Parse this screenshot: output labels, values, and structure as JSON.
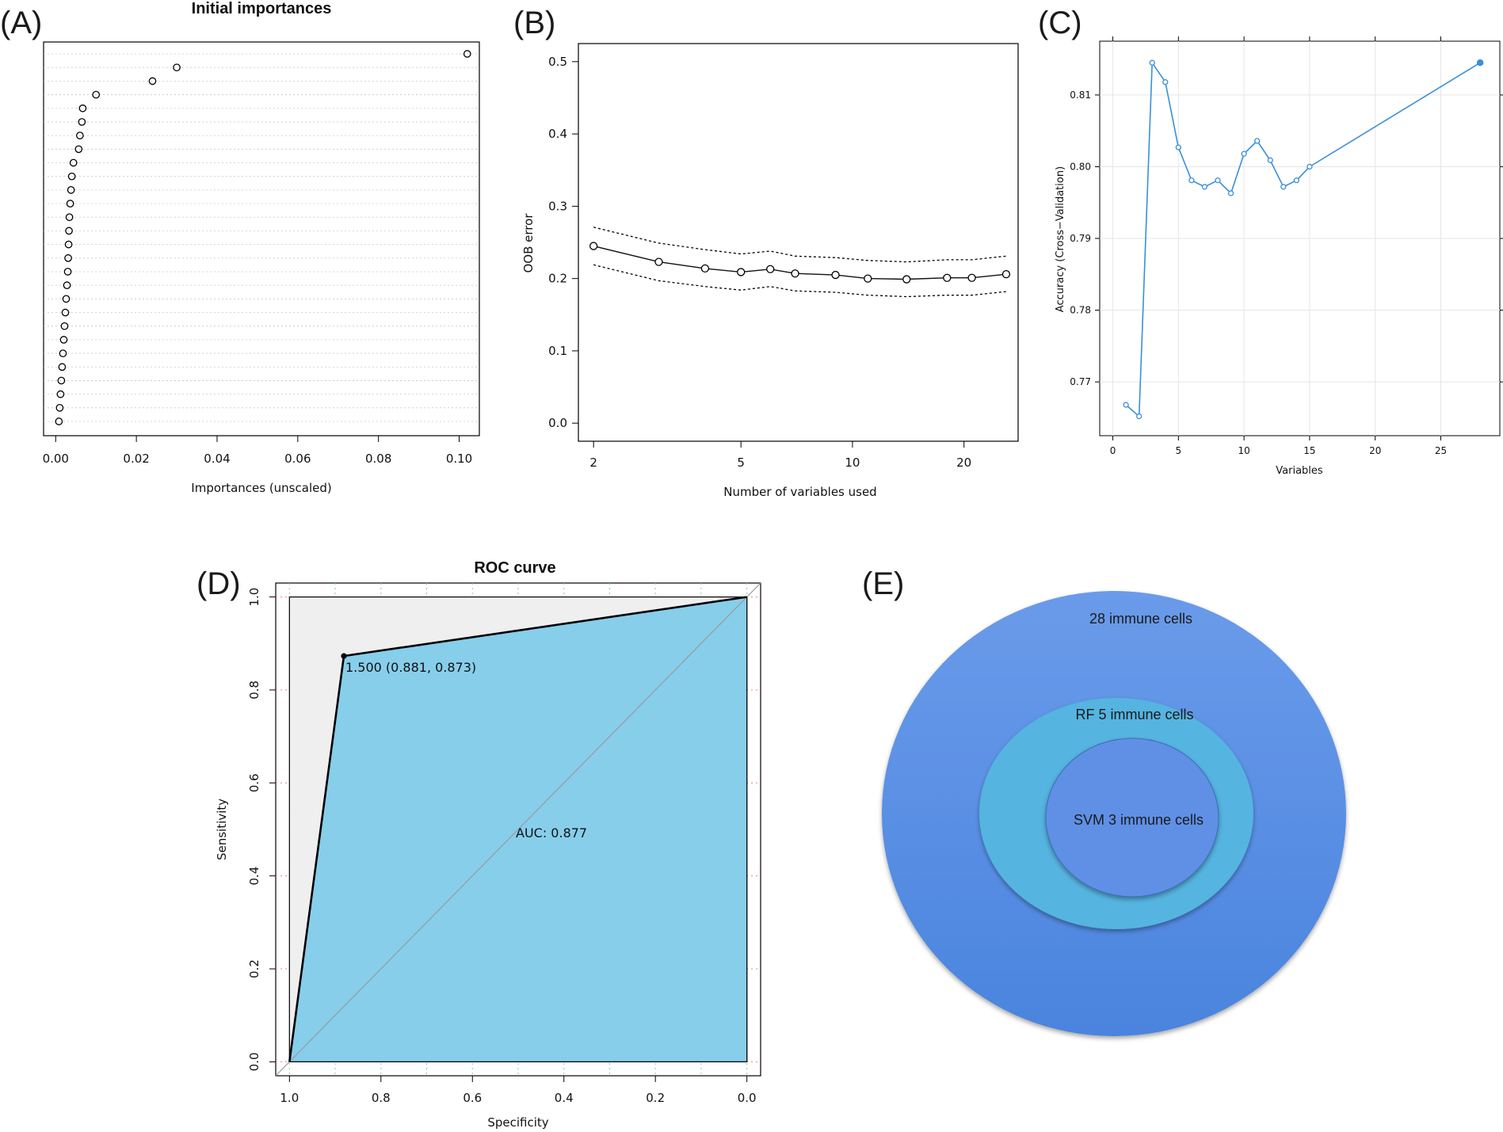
{
  "panels": [
    {
      "id": "A",
      "label": "(A)",
      "chart_data": {
        "type": "scatter",
        "subtype": "dotchart",
        "title": "Initial importances",
        "xlabel": "Importances (unscaled)",
        "ylabel": "",
        "xlim": [
          -0.003,
          0.105
        ],
        "xticks": [
          0.0,
          0.02,
          0.04,
          0.06,
          0.08,
          0.1
        ],
        "xtick_labels": [
          "0.00",
          "0.02",
          "0.04",
          "0.06",
          "0.08",
          "0.10"
        ],
        "values": [
          0.102,
          0.03,
          0.024,
          0.01,
          0.0067,
          0.0065,
          0.006,
          0.0057,
          0.0044,
          0.004,
          0.0038,
          0.0036,
          0.0034,
          0.0033,
          0.0032,
          0.0031,
          0.003,
          0.0028,
          0.0026,
          0.0024,
          0.0022,
          0.002,
          0.0018,
          0.0016,
          0.0014,
          0.0012,
          0.001,
          0.0008
        ]
      }
    },
    {
      "id": "B",
      "label": "(B)",
      "chart_data": {
        "type": "line",
        "xlabel": "Number of variables used",
        "ylabel": "OOB error",
        "xscale": "log",
        "xlim": [
          1.82,
          28
        ],
        "ylim": [
          -0.025,
          0.525
        ],
        "xticks": [
          2,
          5,
          10,
          20
        ],
        "xtick_labels": [
          "2",
          "5",
          "10",
          "20"
        ],
        "yticks": [
          0.0,
          0.1,
          0.2,
          0.3,
          0.4,
          0.5
        ],
        "ytick_labels": [
          "0.0",
          "0.1",
          "0.2",
          "0.3",
          "0.4",
          "0.5"
        ],
        "x": [
          2,
          3,
          4,
          5,
          6,
          7,
          9,
          11,
          14,
          18,
          21,
          26
        ],
        "series": [
          {
            "name": "OOB error",
            "values": [
              0.245,
              0.223,
              0.214,
              0.209,
              0.213,
              0.207,
              0.205,
              0.2,
              0.199,
              0.201,
              0.201,
              0.206
            ]
          },
          {
            "name": "upper",
            "values": [
              0.271,
              0.249,
              0.24,
              0.234,
              0.238,
              0.231,
              0.229,
              0.225,
              0.223,
              0.226,
              0.226,
              0.231
            ]
          },
          {
            "name": "lower",
            "values": [
              0.219,
              0.197,
              0.189,
              0.184,
              0.189,
              0.183,
              0.181,
              0.177,
              0.175,
              0.177,
              0.177,
              0.182
            ]
          }
        ]
      }
    },
    {
      "id": "C",
      "label": "(C)",
      "chart_data": {
        "type": "line",
        "xlabel": "Variables",
        "ylabel": "Accuracy (Cross−Validation)",
        "xlim": [
          -1,
          29.5
        ],
        "ylim": [
          0.7625,
          0.8175
        ],
        "xticks": [
          0,
          5,
          10,
          15,
          20,
          25
        ],
        "xtick_labels": [
          "0",
          "5",
          "10",
          "15",
          "20",
          "25"
        ],
        "yticks": [
          0.77,
          0.78,
          0.79,
          0.8,
          0.81
        ],
        "ytick_labels": [
          "0.77",
          "0.78",
          "0.79",
          "0.80",
          "0.81"
        ],
        "x": [
          1,
          2,
          3,
          4,
          5,
          6,
          7,
          8,
          9,
          10,
          11,
          12,
          13,
          14,
          15,
          28
        ],
        "values": [
          0.7668,
          0.7652,
          0.8145,
          0.8118,
          0.8027,
          0.7981,
          0.7972,
          0.7981,
          0.7963,
          0.8018,
          0.8036,
          0.8009,
          0.7972,
          0.7981,
          0.8,
          0.8145
        ],
        "line_color": "#3a8fd8",
        "highlight_x": 28
      }
    },
    {
      "id": "D",
      "label": "(D)",
      "chart_data": {
        "type": "area",
        "subtype": "roc",
        "title": "ROC curve",
        "xlabel": "Specificity",
        "ylabel": "Sensitivity",
        "xlim": [
          1.03,
          -0.03
        ],
        "ylim": [
          -0.03,
          1.03
        ],
        "xticks": [
          1.0,
          0.8,
          0.6,
          0.4,
          0.2,
          0.0
        ],
        "xtick_labels": [
          "1.0",
          "0.8",
          "0.6",
          "0.4",
          "0.2",
          "0.0"
        ],
        "yticks": [
          0.0,
          0.2,
          0.4,
          0.6,
          0.8,
          1.0
        ],
        "ytick_labels": [
          "0.0",
          "0.2",
          "0.4",
          "0.6",
          "0.8",
          "1.0"
        ],
        "specificity": [
          1.0,
          0.881,
          0.0
        ],
        "sensitivity": [
          0.0,
          0.873,
          1.0
        ],
        "threshold_point": {
          "specificity": 0.881,
          "sensitivity": 0.873,
          "label": "1.500 (0.881, 0.873)"
        },
        "auc_label": "AUC: 0.877",
        "auc_fill_color": "#87ceeb",
        "ci_fill_color": "#efefef"
      }
    },
    {
      "id": "E",
      "label": "(E)",
      "venn": {
        "outer": {
          "label": "28 immune cells",
          "color": "#5b8ee6"
        },
        "middle": {
          "label": "RF 5 immune cells",
          "color": "#55b4e0"
        },
        "inner": {
          "label": "SVM 3 immune cells",
          "color": "#5f90e6"
        }
      }
    }
  ]
}
